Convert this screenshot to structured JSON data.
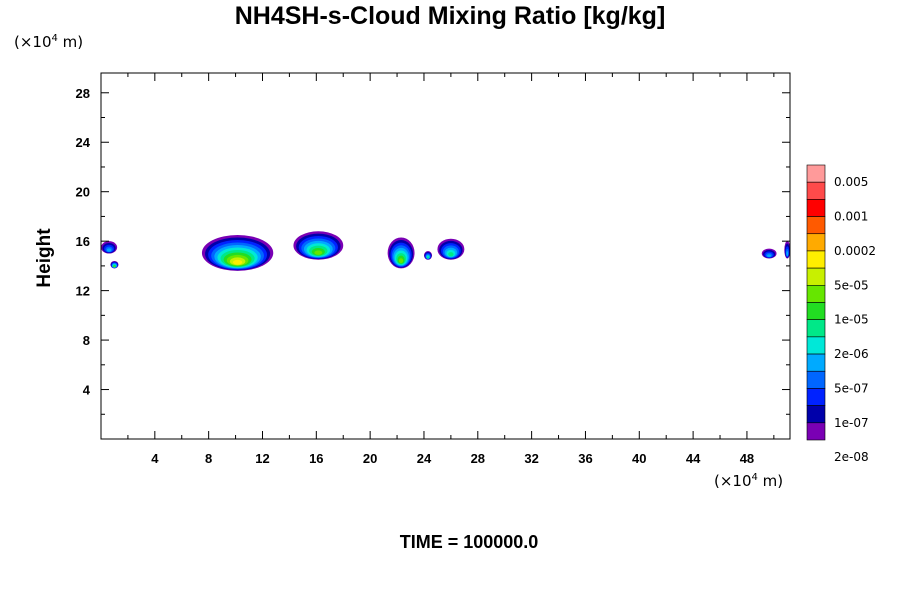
{
  "title": "NH4SH-s-Cloud Mixing Ratio [kg/kg]",
  "y_unit": {
    "prefix": "(×10",
    "exp": "4",
    "suffix": " m)"
  },
  "x_unit": {
    "prefix": "(×10",
    "exp": "4",
    "suffix": " m)"
  },
  "footer": "TIME = 100000.0",
  "chart_data": {
    "type": "heatmap",
    "title": "NH4SH-s-Cloud Mixing Ratio [kg/kg]",
    "xlabel": "",
    "ylabel": "Height",
    "xlim": [
      0,
      51.2
    ],
    "ylim": [
      0,
      29.6
    ],
    "x_ticks": [
      4,
      8,
      12,
      16,
      20,
      24,
      28,
      32,
      36,
      40,
      44,
      48
    ],
    "y_ticks": [
      4,
      8,
      12,
      16,
      20,
      24,
      28
    ],
    "x_tick_labels": [
      "4",
      "8",
      "12",
      "16",
      "20",
      "24",
      "28",
      "32",
      "36",
      "40",
      "44",
      "48"
    ],
    "y_tick_labels": [
      "4",
      "8",
      "12",
      "16",
      "20",
      "24",
      "28"
    ],
    "colorbar": {
      "labels": [
        "0.005",
        "0.001",
        "0.0002",
        "5e-05",
        "1e-05",
        "2e-06",
        "5e-07",
        "1e-07",
        "2e-08"
      ],
      "colors": [
        "#ff9a9a",
        "#ff4a4a",
        "#ff0000",
        "#ff5a00",
        "#ffaa00",
        "#ffee00",
        "#c8f000",
        "#66e600",
        "#22dd22",
        "#00e888",
        "#00e8d8",
        "#00aaff",
        "#0066ff",
        "#0022ff",
        "#0000aa",
        "#7a00b4"
      ]
    },
    "cloud_regions": [
      {
        "x": [
          0.0,
          1.2
        ],
        "y": [
          15.0,
          16.0
        ],
        "peak": "5e-07"
      },
      {
        "x": [
          0.7,
          1.3
        ],
        "y": [
          13.8,
          14.4
        ],
        "peak": "1e-05"
      },
      {
        "x": [
          7.5,
          12.8
        ],
        "y": [
          13.6,
          16.5
        ],
        "peak": "5e-05"
      },
      {
        "x": [
          14.3,
          18.0
        ],
        "y": [
          14.5,
          16.8
        ],
        "peak": "1e-05"
      },
      {
        "x": [
          21.3,
          23.3
        ],
        "y": [
          13.8,
          16.3
        ],
        "peak": "1e-05"
      },
      {
        "x": [
          25.0,
          27.0
        ],
        "y": [
          14.5,
          16.2
        ],
        "peak": "2e-06"
      },
      {
        "x": [
          24.0,
          24.6
        ],
        "y": [
          14.5,
          15.2
        ],
        "peak": "2e-06"
      },
      {
        "x": [
          49.1,
          50.2
        ],
        "y": [
          14.6,
          15.4
        ],
        "peak": "5e-07"
      },
      {
        "x": [
          50.8,
          51.2
        ],
        "y": [
          14.6,
          16.0
        ],
        "peak": "5e-07"
      }
    ]
  }
}
